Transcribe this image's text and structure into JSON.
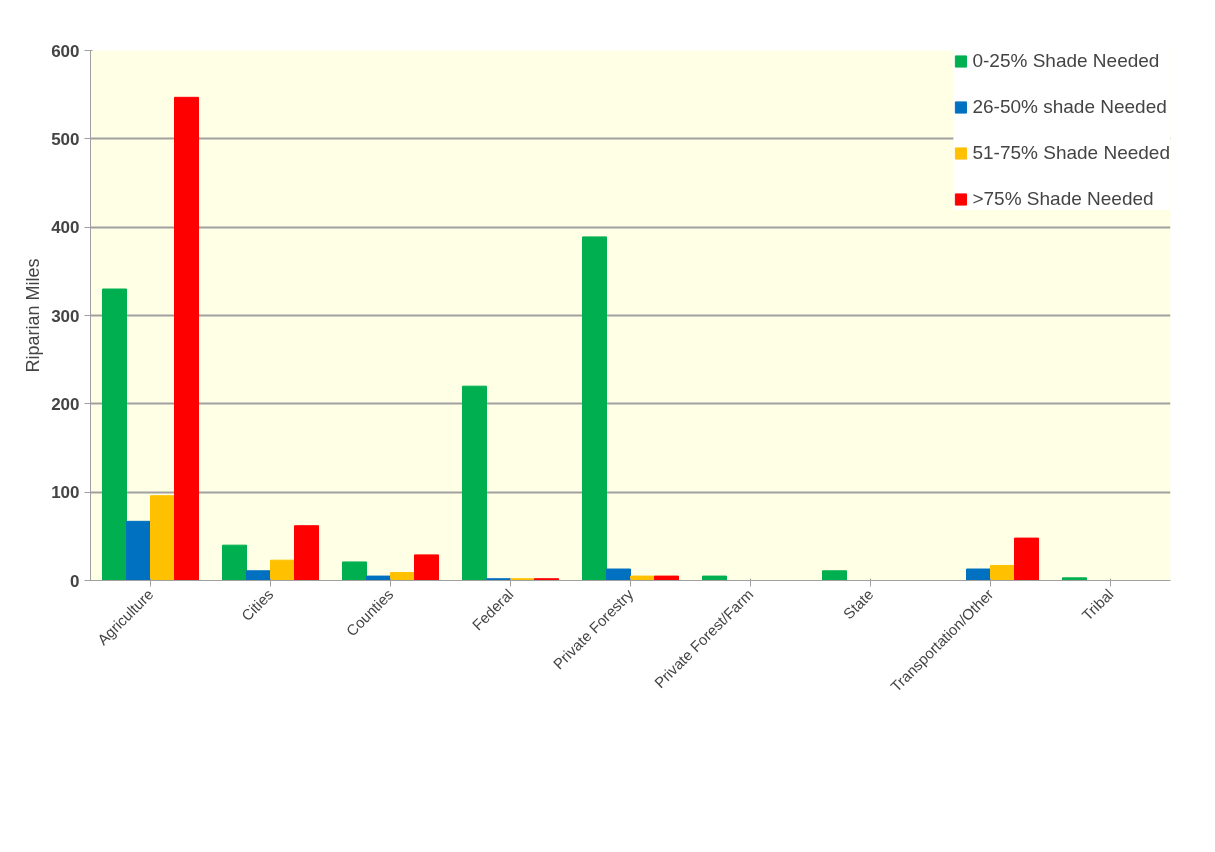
{
  "chart_data": {
    "type": "bar",
    "ylabel": "Riparian Miles",
    "categories": [
      "Agriculture",
      "Cities",
      "Counties",
      "Federal",
      "Private Forestry",
      "Private Forest/Farm",
      "State",
      "Transportation/Other",
      "Tribal"
    ],
    "series": [
      {
        "name": "0-25% Shade Needed",
        "color": "#00b050",
        "values": [
          330,
          40,
          21,
          220,
          389,
          5,
          11,
          0,
          3
        ]
      },
      {
        "name": "26-50% shade Needed",
        "color": "#0070c0",
        "values": [
          67,
          11,
          5,
          2,
          13,
          0,
          0,
          13,
          0
        ]
      },
      {
        "name": "51-75% Shade Needed",
        "color": "#ffc000",
        "values": [
          96,
          23,
          9,
          2,
          5,
          0,
          0,
          17,
          0
        ]
      },
      {
        "name": ">75% Shade Needed",
        "color": "#ff0000",
        "values": [
          547,
          62,
          29,
          2,
          5,
          0,
          0,
          48,
          0
        ]
      }
    ],
    "ylim": [
      0,
      600
    ],
    "yticks": [
      0,
      100,
      200,
      300,
      400,
      500,
      600
    ],
    "grid": "y",
    "legend": "top right"
  }
}
